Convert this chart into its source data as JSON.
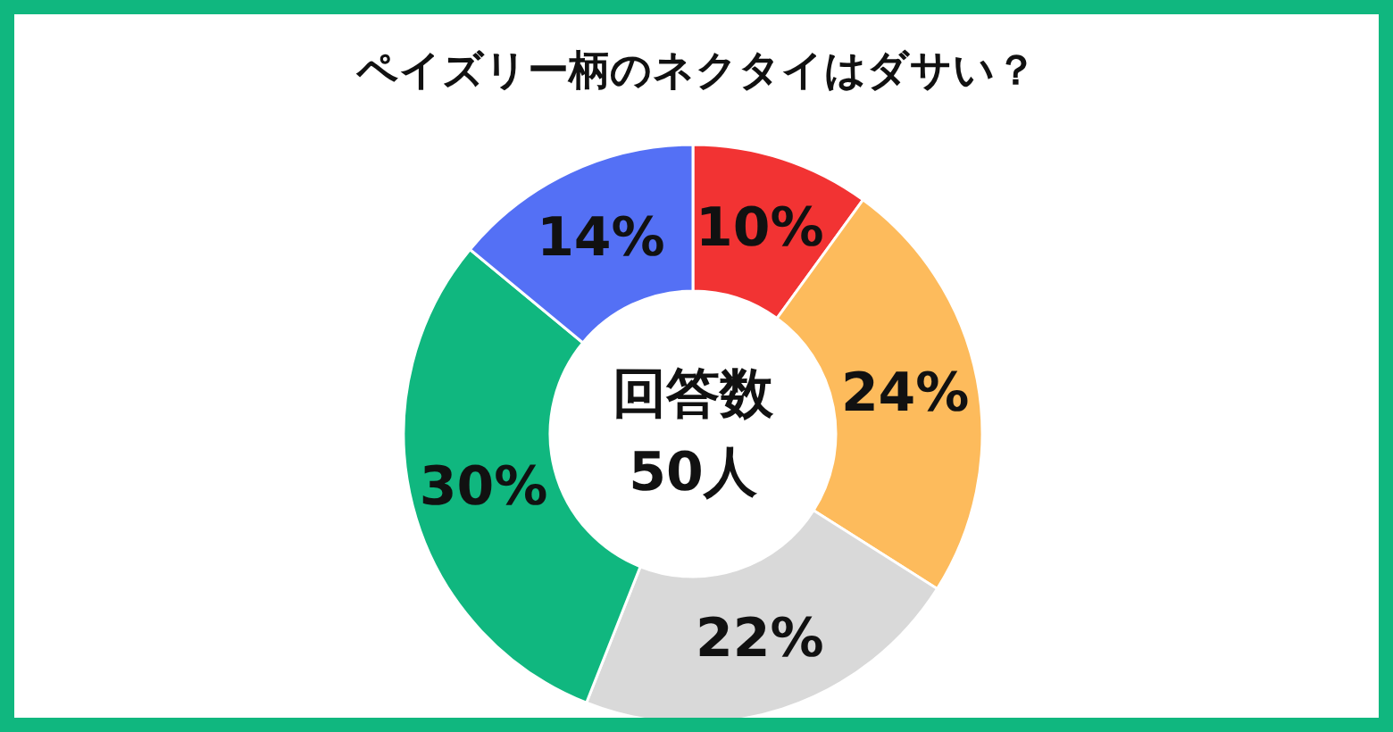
{
  "chart_data": {
    "type": "donut",
    "title": "ペイズリー柄のネクタイはダサい？",
    "categories": [
      null,
      null,
      null,
      null,
      null
    ],
    "values": [
      10,
      24,
      22,
      30,
      14
    ],
    "colors": [
      "#f23333",
      "#fdbb5c",
      "#d9d9d9",
      "#10b77f",
      "#5470f5"
    ],
    "value_labels": [
      "10%",
      "24%",
      "22%",
      "30%",
      "14%"
    ],
    "annotations": [
      "回答数",
      "50人"
    ]
  }
}
